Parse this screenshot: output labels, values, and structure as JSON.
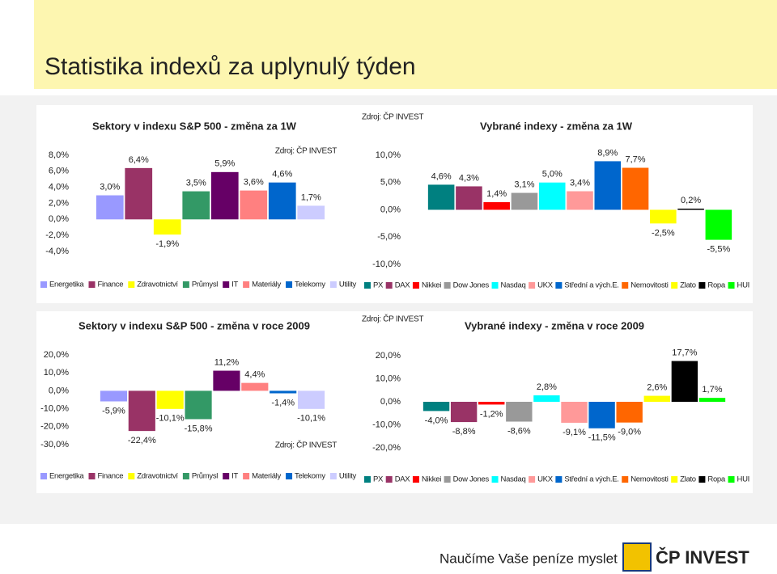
{
  "title": "Statistika indexů za uplynulý týden",
  "footer": {
    "slogan": "Naučíme Vaše peníze myslet",
    "brand": "ČP INVEST"
  },
  "chart_data": [
    {
      "type": "bar",
      "title": "Sektory v indexu S&P 500 - změna za 1W",
      "source": "Zdroj: ČP INVEST",
      "categories": [
        "Energetika",
        "Finance",
        "Zdravotnictví",
        "Průmysl",
        "IT",
        "Materiály",
        "Telekomy",
        "Utility"
      ],
      "values": [
        3.0,
        6.4,
        -1.9,
        3.5,
        5.9,
        3.6,
        4.6,
        1.7
      ],
      "value_labels": [
        "3,0%",
        "6,4%",
        "-1,9%",
        "3,5%",
        "5,9%",
        "3,6%",
        "4,6%",
        "1,7%"
      ],
      "colors": [
        "#9999ff",
        "#993366",
        "#ffff00",
        "#339966",
        "#660066",
        "#ff8080",
        "#0066cc",
        "#ccccff"
      ],
      "ylim": [
        -4,
        8
      ],
      "yticks": [
        {
          "value": -4,
          "label": "-4,0%"
        },
        {
          "value": -2,
          "label": "-2,0%"
        },
        {
          "value": 0,
          "label": "0,0%"
        },
        {
          "value": 2,
          "label": "2,0%"
        },
        {
          "value": 4,
          "label": "4,0%"
        },
        {
          "value": 6,
          "label": "6,0%"
        },
        {
          "value": 8,
          "label": "8,0%"
        }
      ]
    },
    {
      "type": "bar",
      "title": "Vybrané indexy - změna za 1W",
      "source": "Zdroj: ČP INVEST",
      "categories": [
        "PX",
        "DAX",
        "Nikkei",
        "Dow Jones",
        "Nasdaq",
        "UKX",
        "Střední a vých.E.",
        "Nemovitosti",
        "Zlato",
        "Ropa",
        "HUI"
      ],
      "values": [
        4.6,
        4.3,
        1.4,
        3.1,
        5.0,
        3.4,
        8.9,
        7.7,
        -2.5,
        0.2,
        -5.5
      ],
      "value_labels": [
        "4,6%",
        "4,3%",
        "1,4%",
        "3,1%",
        "5,0%",
        "3,4%",
        "8,9%",
        "7,7%",
        "-2,5%",
        "0,2%",
        "-5,5%"
      ],
      "colors": [
        "#008080",
        "#993366",
        "#ff0000",
        "#999999",
        "#00ffff",
        "#ff9999",
        "#0066cc",
        "#ff6600",
        "#ffff00",
        "#000000",
        "#00ff00"
      ],
      "ylim": [
        -10,
        10
      ],
      "yticks": [
        {
          "value": -10,
          "label": "-10,0%"
        },
        {
          "value": -5,
          "label": "-5,0%"
        },
        {
          "value": 0,
          "label": "0,0%"
        },
        {
          "value": 5,
          "label": "5,0%"
        },
        {
          "value": 10,
          "label": "10,0%"
        }
      ]
    },
    {
      "type": "bar",
      "title": "Sektory v indexu S&P 500 - změna v roce 2009",
      "source": "Zdroj: ČP INVEST",
      "categories": [
        "Energetika",
        "Finance",
        "Zdravotnictví",
        "Průmysl",
        "IT",
        "Materiály",
        "Telekomy",
        "Utility"
      ],
      "values": [
        -5.9,
        -22.4,
        -10.1,
        -15.8,
        11.2,
        4.4,
        -1.4,
        -10.1
      ],
      "value_labels": [
        "-5,9%",
        "-22,4%",
        "-10,1%",
        "-15,8%",
        "11,2%",
        "4,4%",
        "-1,4%",
        "-10,1%"
      ],
      "colors": [
        "#9999ff",
        "#993366",
        "#ffff00",
        "#339966",
        "#660066",
        "#ff8080",
        "#0066cc",
        "#ccccff"
      ],
      "ylim": [
        -30,
        20
      ],
      "yticks": [
        {
          "value": -30,
          "label": "-30,0%"
        },
        {
          "value": -20,
          "label": "-20,0%"
        },
        {
          "value": -10,
          "label": "-10,0%"
        },
        {
          "value": 0,
          "label": "0,0%"
        },
        {
          "value": 10,
          "label": "10,0%"
        },
        {
          "value": 20,
          "label": "20,0%"
        }
      ]
    },
    {
      "type": "bar",
      "title": "Vybrané indexy - změna v roce 2009",
      "source": "Zdroj: ČP INVEST",
      "categories": [
        "PX",
        "DAX",
        "Nikkei",
        "Dow Jones",
        "Nasdaq",
        "UKX",
        "Střední a vých.E.",
        "Nemovitosti",
        "Zlato",
        "Ropa",
        "HUI"
      ],
      "values": [
        -4.0,
        -8.8,
        -1.2,
        -8.6,
        2.8,
        -9.1,
        -11.5,
        -9.0,
        2.6,
        17.7,
        1.7
      ],
      "value_labels": [
        "-4,0%",
        "-8,8%",
        "-1,2%",
        "-8,6%",
        "2,8%",
        "-9,1%",
        "-11,5%",
        "-9,0%",
        "2,6%",
        "17,7%",
        "1,7%"
      ],
      "colors": [
        "#008080",
        "#993366",
        "#ff0000",
        "#999999",
        "#00ffff",
        "#ff9999",
        "#0066cc",
        "#ff6600",
        "#ffff00",
        "#000000",
        "#00ff00"
      ],
      "ylim": [
        -20,
        20
      ],
      "yticks": [
        {
          "value": -20,
          "label": "-20,0%"
        },
        {
          "value": -10,
          "label": "-10,0%"
        },
        {
          "value": 0,
          "label": "0,0%"
        },
        {
          "value": 10,
          "label": "10,0%"
        },
        {
          "value": 20,
          "label": "20,0%"
        }
      ]
    }
  ]
}
